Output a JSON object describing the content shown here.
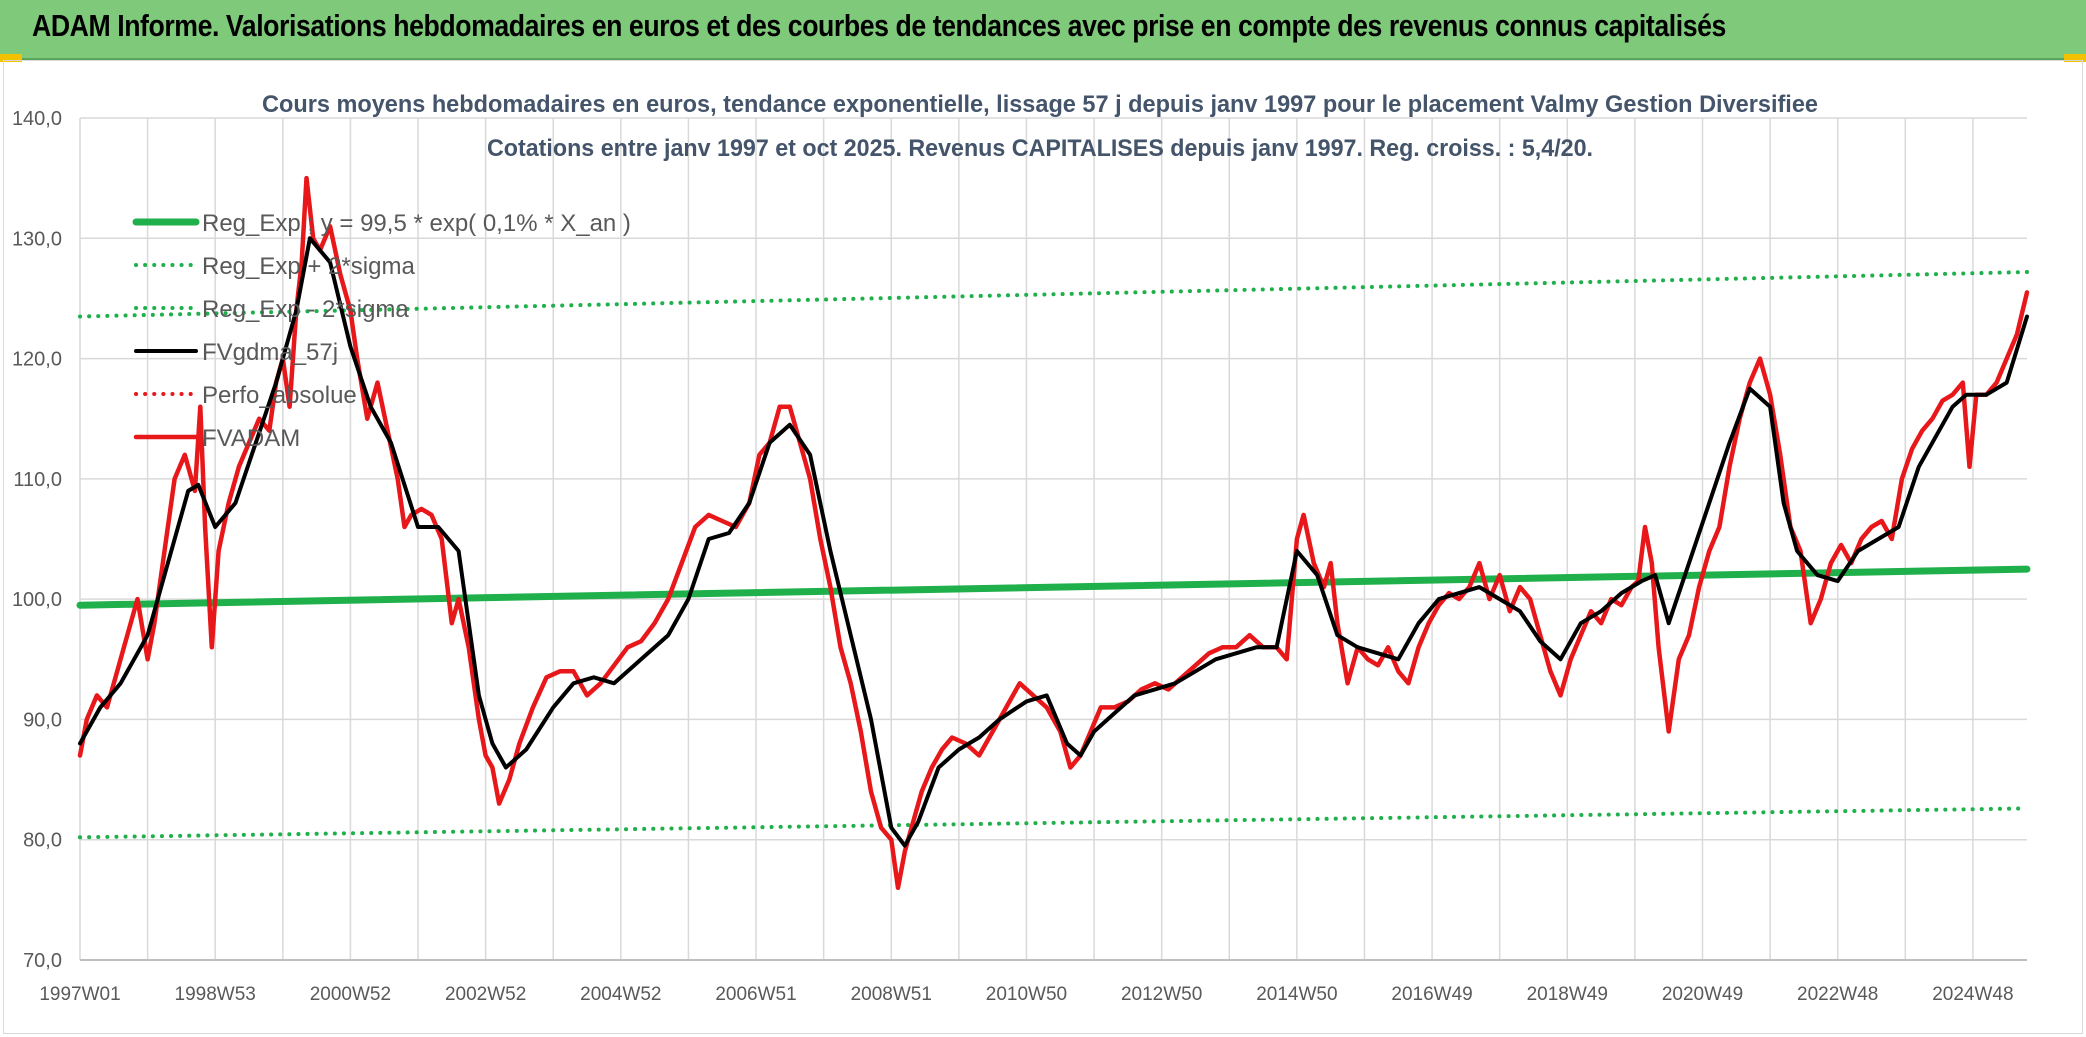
{
  "banner": {
    "title": "ADAM Informe. Valorisations hebdomadaires en euros et des courbes de tendances avec prise en compte des revenus connus capitalisés"
  },
  "chart_data": {
    "type": "line",
    "title": "Cours moyens hebdomadaires en euros, tendance exponentielle, lissage 57 j depuis janv 1997 pour le placement Valmy Gestion Diversifiee",
    "subtitle": "Cotations entre janv 1997 et oct 2025. Revenus CAPITALISES depuis janv 1997. Reg. croiss. : 5,4/20.",
    "xlabel": "",
    "ylabel": "",
    "ylim": [
      70,
      140
    ],
    "yticks": [
      "70,0",
      "80,0",
      "90,0",
      "100,0",
      "110,0",
      "120,0",
      "130,0",
      "140,0"
    ],
    "xlim": [
      1997.0,
      2025.8
    ],
    "xticks": [
      {
        "label": "1997W01",
        "x": 1997.0
      },
      {
        "label": "1998W53",
        "x": 1999.0
      },
      {
        "label": "2000W52",
        "x": 2001.0
      },
      {
        "label": "2002W52",
        "x": 2003.0
      },
      {
        "label": "2004W52",
        "x": 2005.0
      },
      {
        "label": "2006W51",
        "x": 2007.0
      },
      {
        "label": "2008W51",
        "x": 2009.0
      },
      {
        "label": "2010W50",
        "x": 2011.0
      },
      {
        "label": "2012W50",
        "x": 2013.0
      },
      {
        "label": "2014W50",
        "x": 2015.0
      },
      {
        "label": "2016W49",
        "x": 2017.0
      },
      {
        "label": "2018W49",
        "x": 2019.0
      },
      {
        "label": "2020W49",
        "x": 2021.0
      },
      {
        "label": "2022W48",
        "x": 2023.0
      },
      {
        "label": "2024W48",
        "x": 2025.0
      }
    ],
    "grid": true,
    "legend_position": "top-left",
    "series": [
      {
        "name": "Reg_Exp ; y = 99,5 * exp( 0,1% *  X_an )",
        "style": "solid",
        "color": "#1fb04b",
        "x": [
          1997.0,
          2025.8
        ],
        "y": [
          99.5,
          102.5
        ]
      },
      {
        "name": "Reg_Exp + 2*sigma",
        "style": "dotted",
        "color": "#1fb04b",
        "x": [
          1997.0,
          2025.8
        ],
        "y": [
          123.5,
          127.2
        ]
      },
      {
        "name": "Reg_Exp - 2*sigma",
        "style": "dotted",
        "color": "#1fb04b",
        "x": [
          1997.0,
          2025.8
        ],
        "y": [
          80.2,
          82.6
        ]
      },
      {
        "name": "FVgdma_57j",
        "style": "solid",
        "color": "#000000",
        "x": [
          1997.0,
          1997.3,
          1997.6,
          1998.0,
          1998.3,
          1998.6,
          1998.75,
          1999.0,
          1999.3,
          1999.6,
          1999.9,
          2000.2,
          2000.4,
          2000.7,
          2001.0,
          2001.3,
          2001.6,
          2002.0,
          2002.3,
          2002.6,
          2002.9,
          2003.1,
          2003.3,
          2003.6,
          2004.0,
          2004.3,
          2004.6,
          2004.9,
          2005.3,
          2005.7,
          2006.0,
          2006.3,
          2006.6,
          2006.9,
          2007.2,
          2007.5,
          2007.8,
          2008.1,
          2008.4,
          2008.7,
          2009.0,
          2009.2,
          2009.4,
          2009.7,
          2010.0,
          2010.3,
          2010.6,
          2011.0,
          2011.3,
          2011.6,
          2011.8,
          2012.0,
          2012.3,
          2012.6,
          2012.9,
          2013.2,
          2013.5,
          2013.8,
          2014.1,
          2014.4,
          2014.7,
          2015.0,
          2015.3,
          2015.6,
          2015.9,
          2016.2,
          2016.5,
          2016.8,
          2017.1,
          2017.4,
          2017.7,
          2018.0,
          2018.3,
          2018.6,
          2018.9,
          2019.2,
          2019.5,
          2019.8,
          2020.1,
          2020.3,
          2020.5,
          2020.8,
          2021.1,
          2021.4,
          2021.7,
          2022.0,
          2022.2,
          2022.4,
          2022.7,
          2023.0,
          2023.3,
          2023.6,
          2023.9,
          2024.2,
          2024.5,
          2024.7,
          2024.9,
          2025.2,
          2025.5,
          2025.8
        ],
        "y": [
          88.0,
          91.0,
          93.0,
          97.0,
          103.0,
          109.0,
          109.5,
          106.0,
          108.0,
          113.0,
          118.0,
          124.0,
          130.0,
          128.0,
          121.0,
          116.0,
          113.0,
          106.0,
          106.0,
          104.0,
          92.0,
          88.0,
          86.0,
          87.5,
          91.0,
          93.0,
          93.5,
          93.0,
          95.0,
          97.0,
          100.0,
          105.0,
          105.5,
          108.0,
          113.0,
          114.5,
          112.0,
          104.0,
          97.0,
          90.0,
          81.0,
          79.5,
          81.5,
          86.0,
          87.5,
          88.5,
          90.0,
          91.5,
          92.0,
          88.0,
          87.0,
          89.0,
          90.5,
          92.0,
          92.5,
          93.0,
          94.0,
          95.0,
          95.5,
          96.0,
          96.0,
          104.0,
          102.0,
          97.0,
          96.0,
          95.5,
          95.0,
          98.0,
          100.0,
          100.5,
          101.0,
          100.0,
          99.0,
          96.5,
          95.0,
          98.0,
          99.0,
          100.5,
          101.5,
          102.0,
          98.0,
          103.0,
          108.0,
          113.0,
          117.5,
          116.0,
          108.0,
          104.0,
          102.0,
          101.5,
          104.0,
          105.0,
          106.0,
          111.0,
          114.0,
          116.0,
          117.0,
          117.0,
          118.0,
          123.5
        ]
      },
      {
        "name": "Perfo_absolue",
        "style": "dotted",
        "color": "#e8171a",
        "x": [],
        "y": []
      },
      {
        "name": "FVADAM",
        "style": "solid",
        "color": "#e8171a",
        "x": [
          1997.0,
          1997.1,
          1997.25,
          1997.4,
          1997.55,
          1997.7,
          1997.85,
          1998.0,
          1998.1,
          1998.25,
          1998.4,
          1998.55,
          1998.7,
          1998.78,
          1998.85,
          1998.95,
          1999.05,
          1999.2,
          1999.35,
          1999.5,
          1999.65,
          1999.8,
          1999.9,
          2000.0,
          2000.1,
          2000.2,
          2000.28,
          2000.35,
          2000.45,
          2000.55,
          2000.7,
          2000.85,
          2001.0,
          2001.1,
          2001.25,
          2001.4,
          2001.55,
          2001.7,
          2001.8,
          2001.9,
          2002.05,
          2002.2,
          2002.35,
          2002.5,
          2002.6,
          2002.75,
          2002.9,
          2003.0,
          2003.1,
          2003.2,
          2003.35,
          2003.5,
          2003.7,
          2003.9,
          2004.1,
          2004.3,
          2004.5,
          2004.7,
          2004.9,
          2005.1,
          2005.3,
          2005.5,
          2005.7,
          2005.9,
          2006.1,
          2006.3,
          2006.5,
          2006.7,
          2006.9,
          2007.05,
          2007.2,
          2007.35,
          2007.5,
          2007.65,
          2007.8,
          2007.95,
          2008.1,
          2008.25,
          2008.4,
          2008.55,
          2008.7,
          2008.85,
          2009.0,
          2009.1,
          2009.2,
          2009.3,
          2009.45,
          2009.6,
          2009.75,
          2009.9,
          2010.1,
          2010.3,
          2010.5,
          2010.7,
          2010.9,
          2011.1,
          2011.3,
          2011.5,
          2011.65,
          2011.8,
          2011.95,
          2012.1,
          2012.3,
          2012.5,
          2012.7,
          2012.9,
          2013.1,
          2013.3,
          2013.5,
          2013.7,
          2013.9,
          2014.1,
          2014.3,
          2014.5,
          2014.7,
          2014.85,
          2015.0,
          2015.1,
          2015.25,
          2015.4,
          2015.5,
          2015.6,
          2015.75,
          2015.9,
          2016.05,
          2016.2,
          2016.35,
          2016.5,
          2016.65,
          2016.8,
          2016.95,
          2017.1,
          2017.25,
          2017.4,
          2017.55,
          2017.7,
          2017.85,
          2018.0,
          2018.15,
          2018.3,
          2018.45,
          2018.6,
          2018.75,
          2018.9,
          2019.05,
          2019.2,
          2019.35,
          2019.5,
          2019.65,
          2019.8,
          2019.95,
          2020.05,
          2020.15,
          2020.25,
          2020.35,
          2020.5,
          2020.65,
          2020.8,
          2020.95,
          2021.1,
          2021.25,
          2021.4,
          2021.55,
          2021.7,
          2021.85,
          2022.0,
          2022.15,
          2022.3,
          2022.45,
          2022.6,
          2022.75,
          2022.9,
          2023.05,
          2023.2,
          2023.35,
          2023.5,
          2023.65,
          2023.8,
          2023.95,
          2024.1,
          2024.25,
          2024.4,
          2024.55,
          2024.7,
          2024.85,
          2024.95,
          2025.05,
          2025.2,
          2025.35,
          2025.5,
          2025.65,
          2025.8
        ],
        "y": [
          87.0,
          90.0,
          92.0,
          91.0,
          94.0,
          97.0,
          100.0,
          95.0,
          98.0,
          104.0,
          110.0,
          112.0,
          109.0,
          116.0,
          106.0,
          96.0,
          104.0,
          108.0,
          111.0,
          113.0,
          115.0,
          114.0,
          118.0,
          120.0,
          116.0,
          124.0,
          128.0,
          135.0,
          130.0,
          129.0,
          131.0,
          127.0,
          124.0,
          120.0,
          115.0,
          118.0,
          114.0,
          110.0,
          106.0,
          107.0,
          107.5,
          107.0,
          105.0,
          98.0,
          100.0,
          96.0,
          90.0,
          87.0,
          86.0,
          83.0,
          85.0,
          88.0,
          91.0,
          93.5,
          94.0,
          94.0,
          92.0,
          93.0,
          94.5,
          96.0,
          96.5,
          98.0,
          100.0,
          103.0,
          106.0,
          107.0,
          106.5,
          106.0,
          108.0,
          112.0,
          113.0,
          116.0,
          116.0,
          113.0,
          110.0,
          105.0,
          101.0,
          96.0,
          93.0,
          89.0,
          84.0,
          81.0,
          80.0,
          76.0,
          79.0,
          81.0,
          84.0,
          86.0,
          87.5,
          88.5,
          88.0,
          87.0,
          89.0,
          91.0,
          93.0,
          92.0,
          91.0,
          89.0,
          86.0,
          87.0,
          89.0,
          91.0,
          91.0,
          91.5,
          92.5,
          93.0,
          92.5,
          93.5,
          94.5,
          95.5,
          96.0,
          96.0,
          97.0,
          96.0,
          96.0,
          95.0,
          105.0,
          107.0,
          103.0,
          101.0,
          103.0,
          98.0,
          93.0,
          96.0,
          95.0,
          94.5,
          96.0,
          94.0,
          93.0,
          96.0,
          98.0,
          99.5,
          100.5,
          100.0,
          101.0,
          103.0,
          100.0,
          102.0,
          99.0,
          101.0,
          100.0,
          97.0,
          94.0,
          92.0,
          95.0,
          97.0,
          99.0,
          98.0,
          100.0,
          99.5,
          101.0,
          101.5,
          106.0,
          103.0,
          96.0,
          89.0,
          95.0,
          97.0,
          101.0,
          104.0,
          106.0,
          111.0,
          115.0,
          118.0,
          120.0,
          117.0,
          112.0,
          106.0,
          104.0,
          98.0,
          100.0,
          103.0,
          104.5,
          103.0,
          105.0,
          106.0,
          106.5,
          105.0,
          110.0,
          112.5,
          114.0,
          115.0,
          116.5,
          117.0,
          118.0,
          111.0,
          117.0,
          117.0,
          118.0,
          120.0,
          122.0,
          125.5
        ]
      }
    ]
  }
}
